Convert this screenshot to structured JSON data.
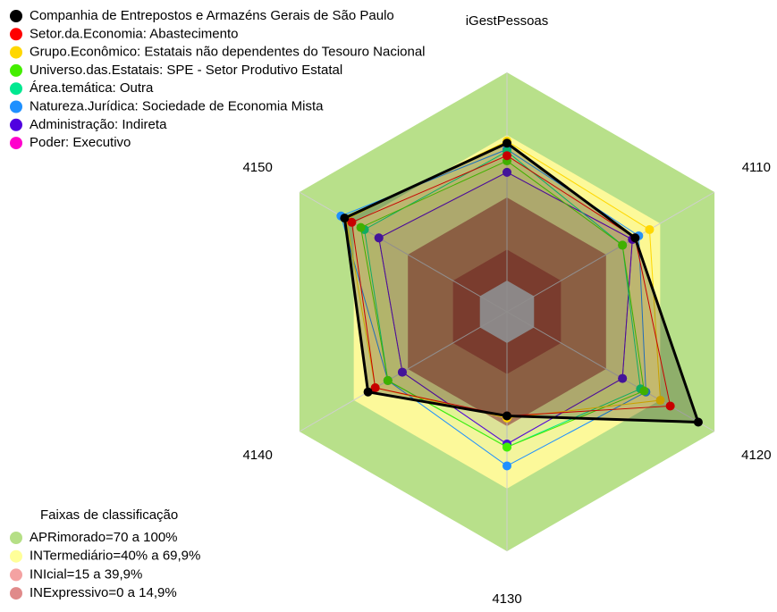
{
  "chart_data": {
    "type": "radar",
    "title": "iGestPessoas",
    "categories": [
      null,
      "4110",
      "4120",
      "4130",
      "4140",
      "4150"
    ],
    "rlim": [
      -15,
      100
    ],
    "series": [
      {
        "name": "Companhia de Entrepostos e Armazéns Gerais de São Paulo",
        "color": "#000000",
        "values": [
          66,
          56,
          91,
          35,
          62,
          75
        ]
      },
      {
        "name": "Setor.da.Economia: Abastecimento",
        "color": "#ff0000",
        "values": [
          60,
          56,
          75.5,
          35,
          58,
          71
        ]
      },
      {
        "name": "Grupo.Econômico: Estatais não dependentes do Tesouro Nacional",
        "color": "#ffd700",
        "values": [
          67,
          64,
          70,
          36,
          58,
          74
        ]
      },
      {
        "name": "Universo.das.Estatais: SPE - Setor Produtivo Estatal",
        "color": "#44ee00",
        "values": [
          57.5,
          49,
          61,
          50,
          51,
          66
        ]
      },
      {
        "name": "Área.temática: Outra",
        "color": "#00e890",
        "values": [
          62,
          49,
          59,
          50,
          51,
          64
        ]
      },
      {
        "name": "Natureza.Jurídica: Sociedade de Economia Mista",
        "color": "#1e90ff",
        "values": [
          63,
          58,
          62,
          59,
          51,
          77
        ]
      },
      {
        "name": "Administração: Indireta",
        "color": "#5000e0",
        "values": [
          52,
          54.5,
          49,
          48.5,
          43,
          56
        ]
      },
      {
        "name": "Poder: Executivo",
        "color": "#ff00cc",
        "values": [
          52,
          54.5,
          49,
          48.5,
          43,
          56
        ]
      }
    ],
    "bands_title": "Faixas de classificação",
    "bands": [
      {
        "name": "APRimorado=70 a 100%",
        "range": [
          70,
          100
        ],
        "color": "#b5df86",
        "fill": "#b8e08a"
      },
      {
        "name": "INTermediário=40% a 69,9%",
        "range": [
          40,
          69.9
        ],
        "color": "#ffff99",
        "fill": "#fcf99a"
      },
      {
        "name": "INIcial=15 a 39,9%",
        "range": [
          15,
          39.9
        ],
        "color": "#f4a2a2",
        "fill": "#c27d52"
      },
      {
        "name": "INExpressivo=0 a 14,9%",
        "range": [
          0,
          14.9
        ],
        "color": "#e08a8a",
        "fill": "#a8432f"
      }
    ]
  }
}
